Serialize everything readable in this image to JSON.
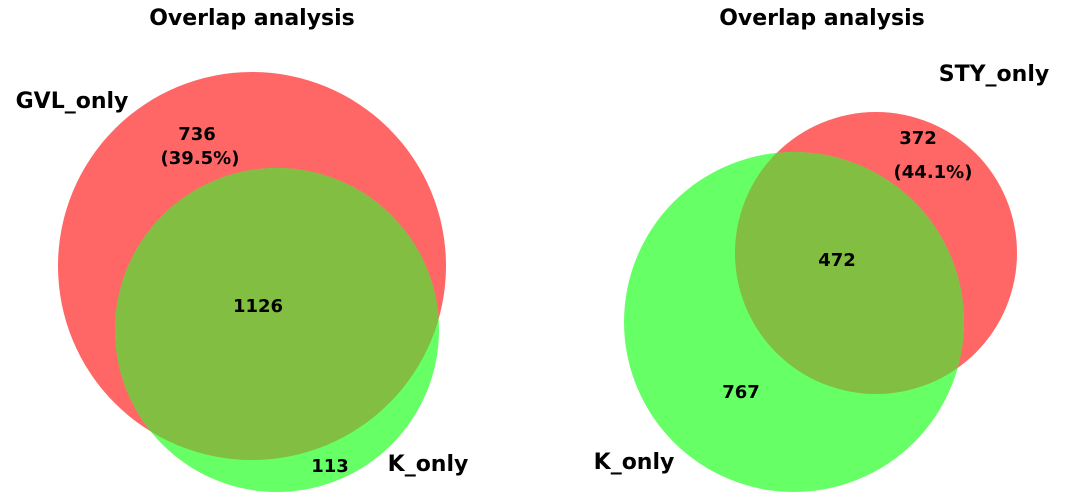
{
  "colors": {
    "set_a_fill": "#ff6666",
    "set_b_fill": "#66ff66",
    "overlap_fill": "#81be41"
  },
  "venn_left": {
    "title": "Overlap analysis",
    "set_a_label": "GVL_only",
    "set_b_label": "K_only",
    "a_only_count": "736",
    "a_only_percent": "(39.5%)",
    "overlap_count": "1126",
    "b_only_count": "113"
  },
  "venn_right": {
    "title": "Overlap analysis",
    "set_a_label": "STY_only",
    "set_b_label": "K_only",
    "a_only_count": "372",
    "a_only_percent": "(44.1%)",
    "overlap_count": "472",
    "b_only_count": "767"
  }
}
